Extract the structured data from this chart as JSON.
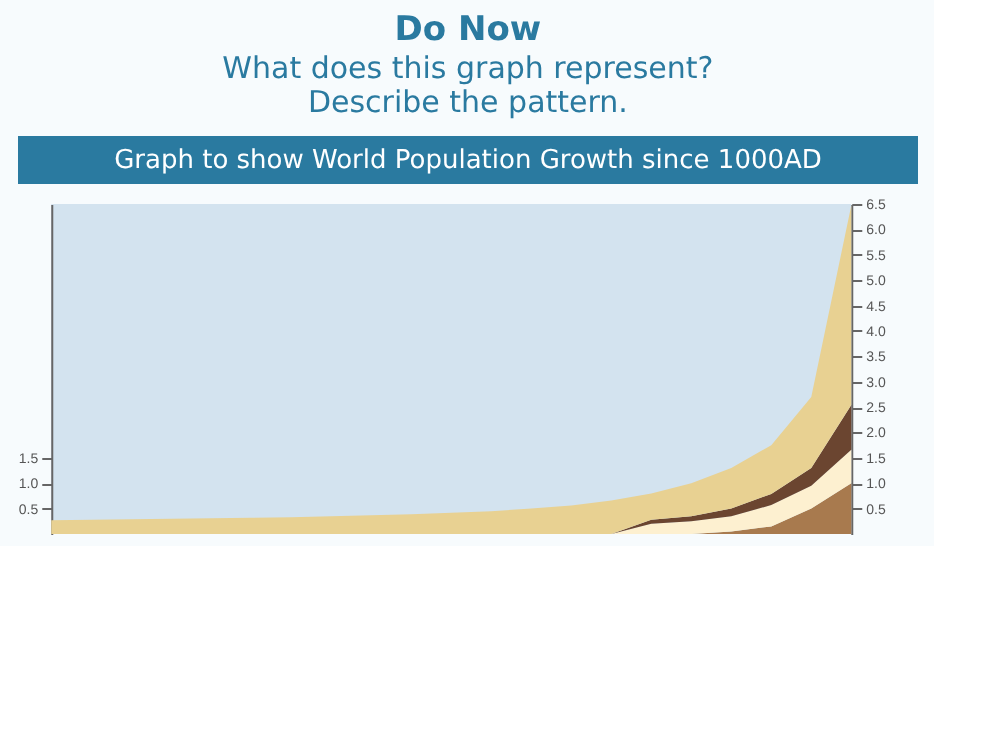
{
  "chart_data": {
    "type": "area",
    "title": "Do Now",
    "subtitle": "What does this graph represent?\nDescribe the pattern.",
    "annotations": [
      "Graph to show World Population Growth since 1000AD"
    ],
    "categories": [
      null,
      null,
      null,
      null,
      null,
      null,
      null,
      null,
      null,
      null,
      null,
      null,
      null,
      null,
      null,
      null,
      null,
      null,
      null,
      null,
      null
    ],
    "stacked": true,
    "grid": false,
    "series": [
      {
        "color": "#a87a4e",
        "values": [
          0,
          0,
          0,
          0,
          0,
          0,
          0,
          0,
          0,
          0,
          0,
          0,
          0,
          0,
          0,
          0,
          0,
          0.05,
          0.15,
          0.5,
          1.0
        ]
      },
      {
        "color": "#fdf0d0",
        "values": [
          0,
          0,
          0,
          0,
          0,
          0,
          0,
          0,
          0,
          0,
          0,
          0,
          0,
          0,
          0,
          0.2,
          0.25,
          0.3,
          0.42,
          0.45,
          0.66
        ]
      },
      {
        "color": "#6b4530",
        "values": [
          0,
          0,
          0,
          0,
          0,
          0,
          0,
          0,
          0,
          0,
          0,
          0,
          0,
          0,
          0,
          0.08,
          0.1,
          0.15,
          0.22,
          0.35,
          0.88
        ]
      },
      {
        "color": "#e8d192",
        "axis": "y2",
        "values": [
          0.27,
          0.28,
          0.29,
          0.3,
          0.31,
          0.32,
          0.33,
          0.35,
          0.37,
          0.39,
          0.42,
          0.45,
          0.5,
          0.56,
          0.66,
          0.52,
          0.65,
          0.8,
          0.96,
          1.4,
          3.93
        ]
      }
    ],
    "ylim": [
      0,
      6.5
    ],
    "yticks": [
      0.5,
      {
        "value": 1,
        "label": "1.0"
      },
      1.5
    ],
    "y2lim": [
      0,
      6.5
    ],
    "y2ticks": [
      0.5,
      {
        "value": 1,
        "label": "1.0"
      },
      1.5,
      {
        "value": 2,
        "label": "2.0"
      },
      2.5,
      {
        "value": 3,
        "label": "3.0"
      },
      3.5,
      {
        "value": 4,
        "label": "4.0"
      },
      4.5,
      {
        "value": 5,
        "label": "5.0"
      },
      5.5,
      {
        "value": 6,
        "label": "6.0"
      },
      6.5
    ]
  }
}
